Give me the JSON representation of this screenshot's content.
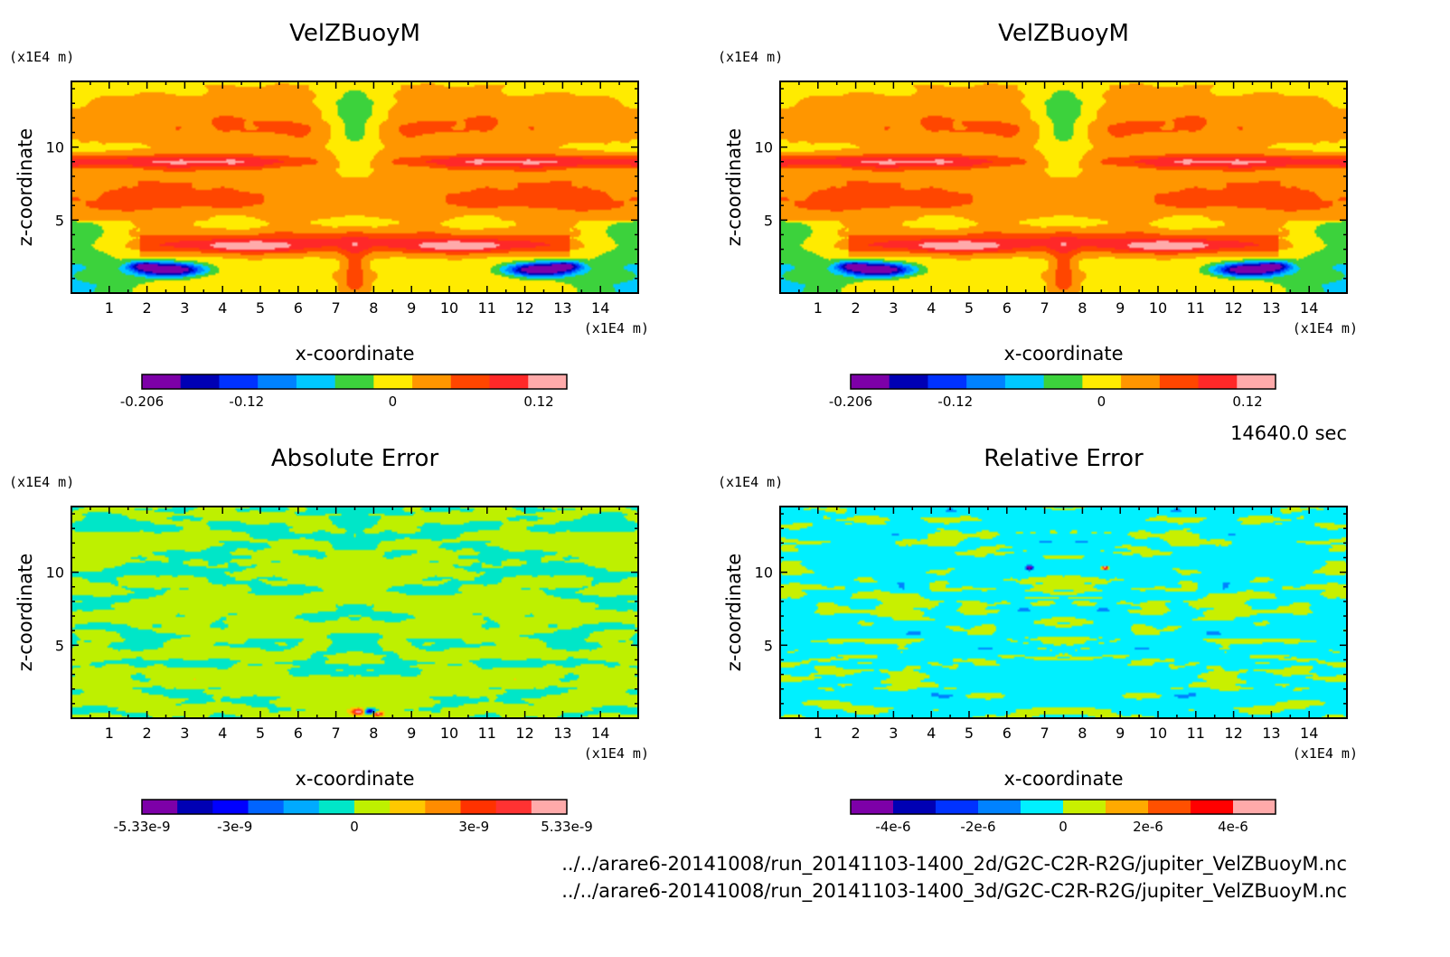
{
  "time_label": "14640.0 sec",
  "files": [
    "../../arare6-20141008/run_20141103-1400_2d/G2C-C2R-R2G/jupiter_VelZBuoyM.nc",
    "../../arare6-20141008/run_20141103-1400_3d/G2C-C2R-R2G/jupiter_VelZBuoyM.nc"
  ],
  "chart_data": [
    {
      "type": "heatmap",
      "title": "VelZBuoyM",
      "xlabel": "x-coordinate",
      "ylabel": "z-coordinate",
      "x_unit": "(x1E4 m)",
      "y_unit": "(x1E4 m)",
      "xlim": [
        0,
        15
      ],
      "ylim": [
        0,
        14.5
      ],
      "x_ticks": [
        1,
        2,
        3,
        4,
        5,
        6,
        7,
        8,
        9,
        10,
        11,
        12,
        13,
        14
      ],
      "y_ticks": [
        5,
        10
      ],
      "pattern": "field",
      "colorbar": {
        "colors": [
          "#7d00a8",
          "#0000b4",
          "#0032ff",
          "#0082ff",
          "#00c8ff",
          "#3cd23c",
          "#ffeb00",
          "#ff9600",
          "#ff4600",
          "#ff2828",
          "#ffaaaa"
        ],
        "min": -0.206,
        "max": 0.143,
        "tick_values": [
          -0.206,
          -0.12,
          0,
          0.12
        ],
        "tick_labels": [
          "-0.206",
          "-0.12",
          "0",
          "0.12"
        ]
      }
    },
    {
      "type": "heatmap",
      "title": "VelZBuoyM",
      "xlabel": "x-coordinate",
      "ylabel": "z-coordinate",
      "x_unit": "(x1E4 m)",
      "y_unit": "(x1E4 m)",
      "xlim": [
        0,
        15
      ],
      "ylim": [
        0,
        14.5
      ],
      "x_ticks": [
        1,
        2,
        3,
        4,
        5,
        6,
        7,
        8,
        9,
        10,
        11,
        12,
        13,
        14
      ],
      "y_ticks": [
        5,
        10
      ],
      "pattern": "field",
      "colorbar": {
        "colors": [
          "#7d00a8",
          "#0000b4",
          "#0032ff",
          "#0082ff",
          "#00c8ff",
          "#3cd23c",
          "#ffeb00",
          "#ff9600",
          "#ff4600",
          "#ff2828",
          "#ffaaaa"
        ],
        "min": -0.206,
        "max": 0.143,
        "tick_values": [
          -0.206,
          -0.12,
          0,
          0.12
        ],
        "tick_labels": [
          "-0.206",
          "-0.12",
          "0",
          "0.12"
        ]
      }
    },
    {
      "type": "heatmap",
      "title": "Absolute Error",
      "xlabel": "x-coordinate",
      "ylabel": "z-coordinate",
      "x_unit": "(x1E4 m)",
      "y_unit": "(x1E4 m)",
      "xlim": [
        0,
        15
      ],
      "ylim": [
        0,
        14.5
      ],
      "x_ticks": [
        1,
        2,
        3,
        4,
        5,
        6,
        7,
        8,
        9,
        10,
        11,
        12,
        13,
        14
      ],
      "y_ticks": [
        5,
        10
      ],
      "pattern": "noise_abs",
      "colorbar": {
        "colors": [
          "#7d00a8",
          "#0000b4",
          "#0000ff",
          "#0064ff",
          "#00aaff",
          "#00e6c8",
          "#bef000",
          "#ffc800",
          "#ff8c00",
          "#ff3200",
          "#ff3232",
          "#ffaaaa"
        ],
        "min": -5.33e-09,
        "max": 5.33e-09,
        "tick_values": [
          -5.33e-09,
          -3e-09,
          0,
          3e-09,
          5.33e-09
        ],
        "tick_labels": [
          "-5.33e-9",
          "-3e-9",
          "0",
          "3e-9",
          "5.33e-9"
        ]
      }
    },
    {
      "type": "heatmap",
      "title": "Relative Error",
      "xlabel": "x-coordinate",
      "ylabel": "z-coordinate",
      "x_unit": "(x1E4 m)",
      "y_unit": "(x1E4 m)",
      "xlim": [
        0,
        15
      ],
      "ylim": [
        0,
        14.5
      ],
      "x_ticks": [
        1,
        2,
        3,
        4,
        5,
        6,
        7,
        8,
        9,
        10,
        11,
        12,
        13,
        14
      ],
      "y_ticks": [
        5,
        10
      ],
      "pattern": "noise_rel",
      "colorbar": {
        "colors": [
          "#7d00a8",
          "#0000b4",
          "#0032ff",
          "#0082ff",
          "#00f0ff",
          "#c8f000",
          "#ffaa00",
          "#ff5000",
          "#ff0000",
          "#ffaaaa"
        ],
        "min": -5e-06,
        "max": 5e-06,
        "tick_values": [
          -4e-06,
          -2e-06,
          0,
          2e-06,
          4e-06
        ],
        "tick_labels": [
          "-4e-6",
          "-2e-6",
          "0",
          "2e-6",
          "4e-6"
        ]
      }
    }
  ]
}
